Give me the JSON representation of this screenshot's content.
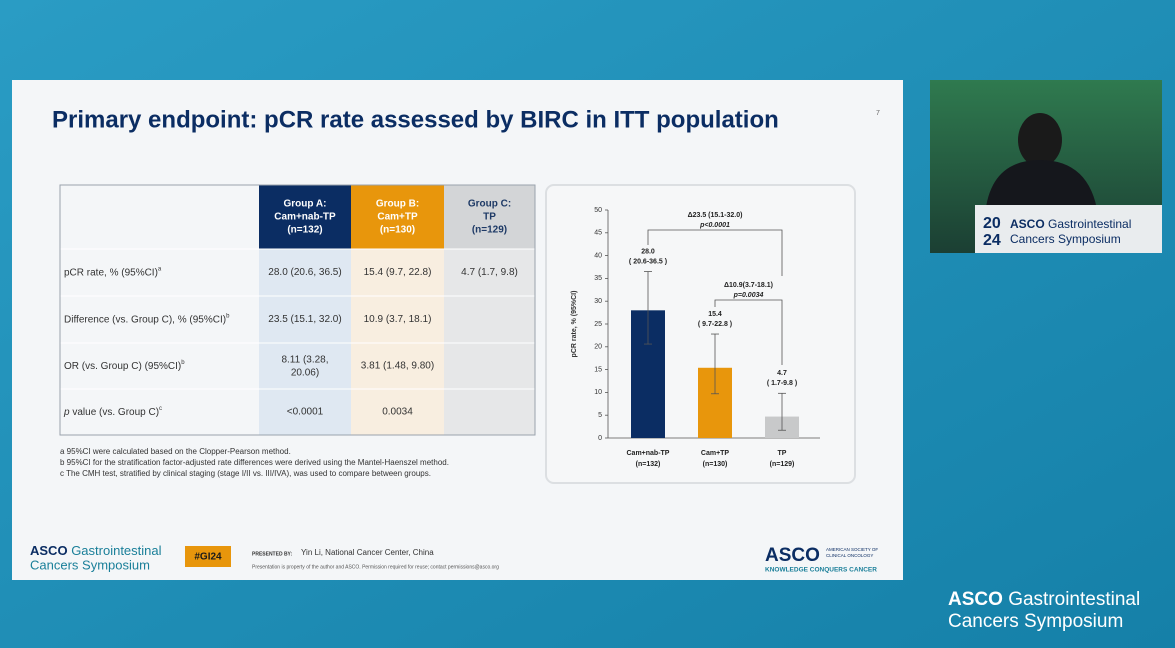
{
  "slide": {
    "title": "Primary endpoint: pCR rate assessed by BIRC in ITT population",
    "page_number": "7"
  },
  "table": {
    "header": [
      [
        "Group A:",
        "Cam+nab-TP",
        "(n=132)"
      ],
      [
        "Group B:",
        "Cam+TP",
        "(n=130)"
      ],
      [
        "Group C:",
        "TP",
        "(n=129)"
      ]
    ],
    "rows": [
      {
        "label": "pCR rate, % (95%CI)",
        "sup": "a",
        "cells": [
          "28.0 (20.6, 36.5)",
          "15.4 (9.7, 22.8)",
          "4.7 (1.7, 9.8)"
        ]
      },
      {
        "label": "Difference (vs. Group C), % (95%CI)",
        "sup": "b",
        "cells": [
          "23.5 (15.1, 32.0)",
          "10.9 (3.7, 18.1)"
        ]
      },
      {
        "label": "OR (vs. Group C) (95%CI)",
        "sup": "b",
        "cells": [
          [
            "8.11 (3.28,",
            "20.06)"
          ],
          "3.81 (1.48, 9.80)"
        ]
      },
      {
        "italic": "p",
        "label": "value (vs. Group C)",
        "sup": "c",
        "cells": [
          "<0.0001",
          "0.0034"
        ]
      }
    ],
    "footnotes": [
      "a 95%CI were calculated based on the Clopper-Pearson method.",
      "b 95%CI for the stratification factor-adjusted rate differences were derived using the Mantel-Haenszel method.",
      "c The CMH test, stratified by clinical staging (stage I/II vs. III/IVA), was used to compare between groups."
    ]
  },
  "chart_data": {
    "type": "bar",
    "ylabel": "pCR rate, % (95%CI)",
    "categories": [
      "Cam+nab-TP",
      "Cam+TP",
      "TP"
    ],
    "category_counts": [
      "(n=132)",
      "(n=130)",
      "(n=129)"
    ],
    "values": [
      28.0,
      15.4,
      4.7
    ],
    "value_labels": [
      "28.0",
      "15.4",
      "4.7"
    ],
    "error_low": [
      20.6,
      9.7,
      1.7
    ],
    "error_high": [
      36.5,
      22.8,
      9.8
    ],
    "ci_labels": [
      "( 20.6-36.5 )",
      "( 9.7-22.8 )",
      "( 1.7-9.8 )"
    ],
    "colors": [
      "#0b2d63",
      "#e8960c",
      "#c8c9ca"
    ],
    "ylim": [
      0,
      50
    ],
    "yticks": [
      0,
      5,
      10,
      15,
      20,
      25,
      30,
      35,
      40,
      45,
      50
    ],
    "annotations": [
      {
        "text": "Δ23.5 (15.1-32.0)",
        "p": "p<0.0001"
      },
      {
        "text": "Δ10.9(3.7-18.1)",
        "p": "p=0.0034"
      }
    ]
  },
  "footer": {
    "brand": "ASCO",
    "brand_line1": "Gastrointestinal",
    "brand_line2": "Cancers Symposium",
    "hashtag": "#GI24",
    "presented_by": "PRESENTED BY:",
    "presenter": "Yin Li, National Cancer Center, China",
    "disclaimer": "Presentation is property of the author and ASCO. Permission required for reuse; contact permissions@asco.org",
    "society": "ASCO",
    "society_lines": [
      "AMERICAN SOCIETY OF",
      "CLINICAL ONCOLOGY"
    ],
    "motto": "KNOWLEDGE CONQUERS CANCER"
  },
  "video_overlay": {
    "podium": {
      "year_top": "20",
      "year_bottom": "24",
      "brand": "ASCO",
      "line1": "Gastrointestinal",
      "line2": "Cancers Symposium"
    },
    "corner": {
      "brand": "ASCO",
      "line1": "Gastrointestinal",
      "line2": "Cancers Symposium"
    }
  }
}
